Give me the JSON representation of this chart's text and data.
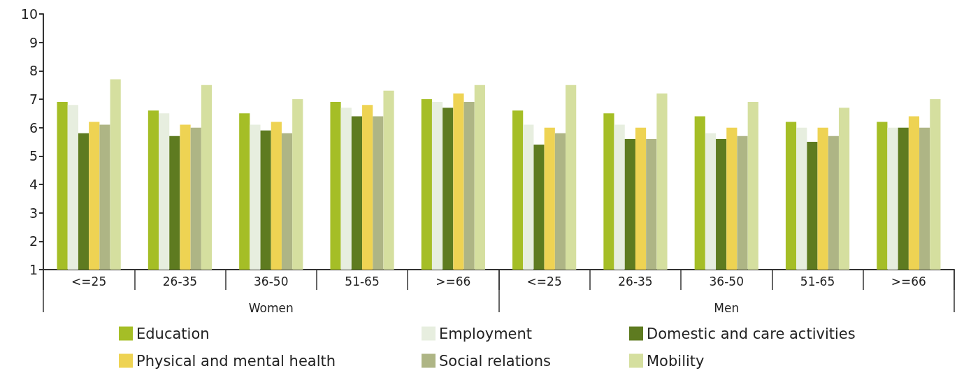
{
  "chart_data": {
    "type": "bar",
    "categories": [
      "<=25",
      "26-35",
      "36-50",
      "51-65",
      ">=66",
      "<=25",
      "26-35",
      "36-50",
      "51-65",
      ">=66"
    ],
    "annotations": [
      "Women",
      "Men"
    ],
    "series": [
      {
        "name": "Education",
        "color": "#a5be26",
        "values": [
          6.9,
          6.6,
          6.5,
          6.9,
          7.0,
          6.6,
          6.5,
          6.4,
          6.2,
          6.2
        ]
      },
      {
        "name": "Employment",
        "color": "#e7eedf",
        "values": [
          6.8,
          6.5,
          6.1,
          6.7,
          6.9,
          6.1,
          6.1,
          5.8,
          6.0,
          6.0
        ]
      },
      {
        "name": "Domestic and care activities",
        "color": "#5e7b20",
        "values": [
          5.8,
          5.7,
          5.9,
          6.4,
          6.7,
          5.4,
          5.6,
          5.6,
          5.5,
          6.0
        ]
      },
      {
        "name": "Physical and mental health",
        "color": "#eed353",
        "values": [
          6.2,
          6.1,
          6.2,
          6.8,
          7.2,
          6.0,
          6.0,
          6.0,
          6.0,
          6.4
        ]
      },
      {
        "name": "Social relations",
        "color": "#aeb585",
        "values": [
          6.1,
          6.0,
          5.8,
          6.4,
          6.9,
          5.8,
          5.6,
          5.7,
          5.7,
          6.0
        ]
      },
      {
        "name": "Mobility",
        "color": "#d5df9f",
        "values": [
          7.7,
          7.5,
          7.0,
          7.3,
          7.5,
          7.5,
          7.2,
          6.9,
          6.7,
          7.0
        ]
      }
    ],
    "ylim": [
      1,
      10
    ],
    "yticks": [
      1,
      2,
      3,
      4,
      5,
      6,
      7,
      8,
      9,
      10
    ],
    "grid": false,
    "legend": "bottom"
  }
}
